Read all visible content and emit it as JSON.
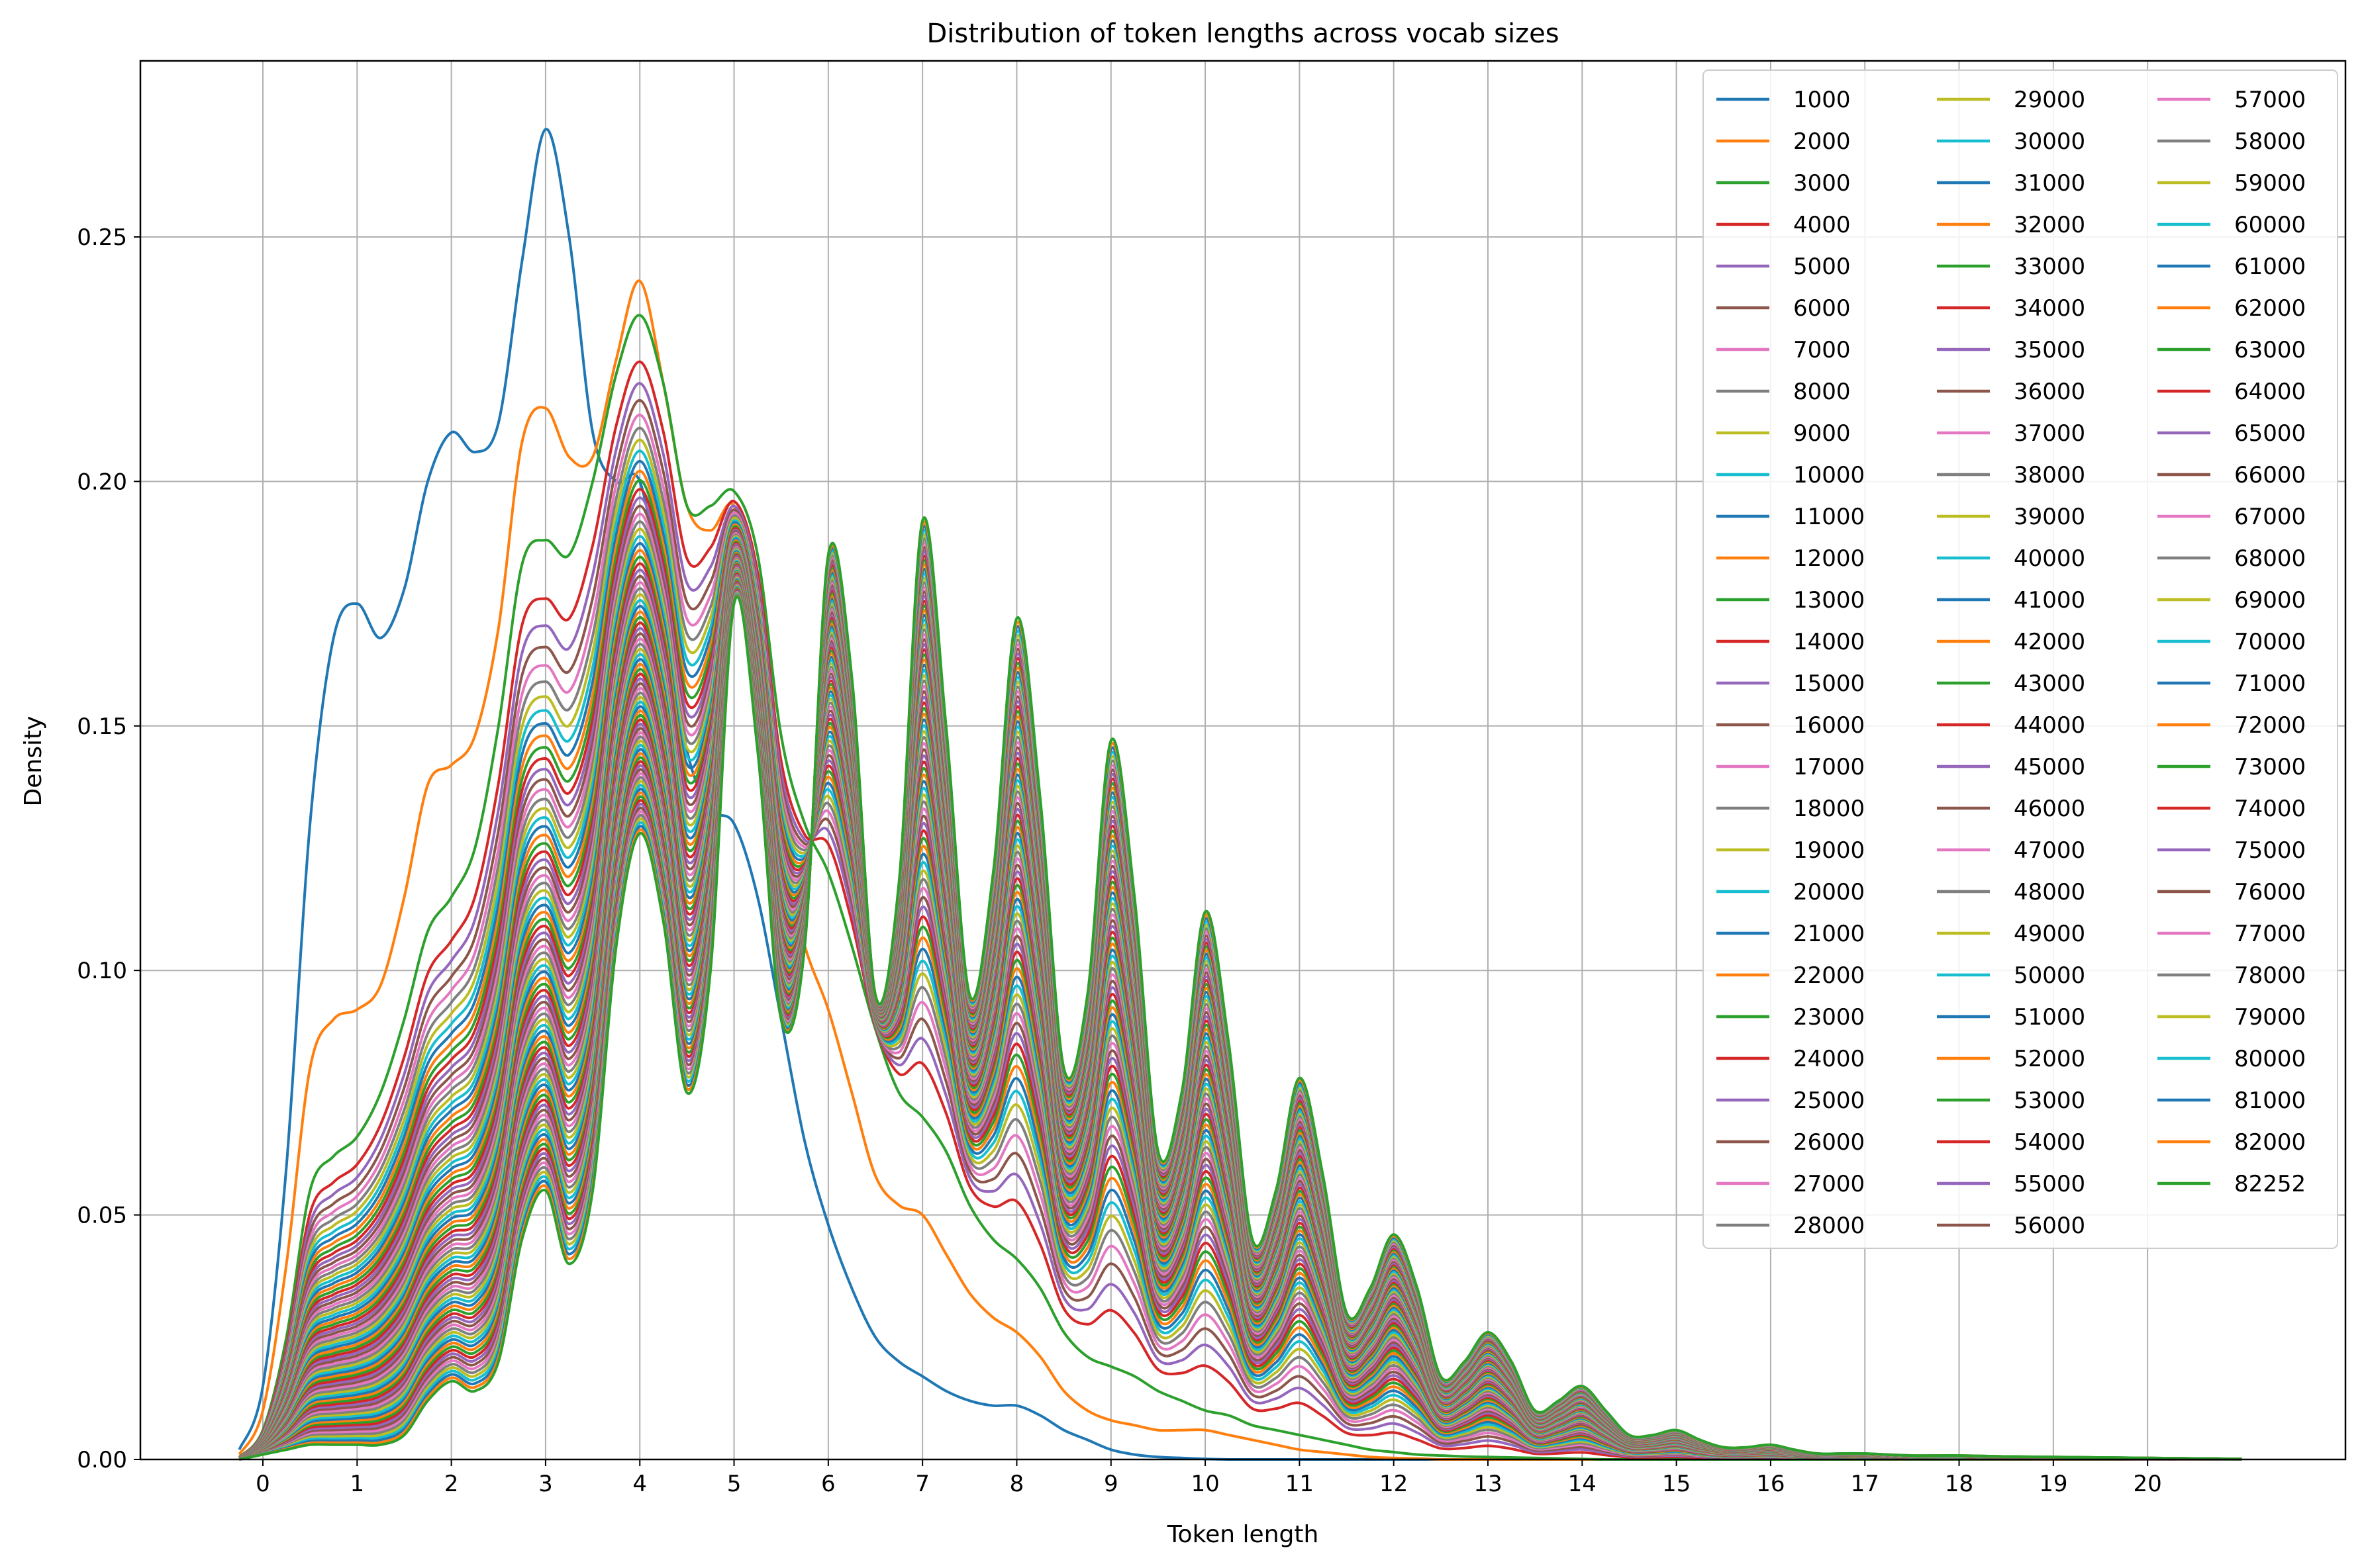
{
  "chart_data": {
    "type": "line",
    "title": "Distribution of token lengths across vocab sizes",
    "xlabel": "Token length",
    "ylabel": "Density",
    "xlim": [
      -1.3,
      22.1
    ],
    "ylim": [
      0,
      0.286
    ],
    "xticks": [
      0,
      1,
      2,
      3,
      4,
      5,
      6,
      7,
      8,
      9,
      10,
      11,
      12,
      13,
      14,
      15,
      16,
      17,
      18,
      19,
      20
    ],
    "yticks": [
      0.0,
      0.05,
      0.1,
      0.15,
      0.2,
      0.25
    ],
    "ytick_labels": [
      "0.00",
      "0.05",
      "0.10",
      "0.15",
      "0.20",
      "0.25"
    ],
    "grid": true,
    "legend_position": "top-right",
    "legend_columns": 3,
    "x": [
      -0.25,
      0,
      0.25,
      0.5,
      0.75,
      1,
      1.25,
      1.5,
      1.75,
      2,
      2.25,
      2.5,
      2.75,
      3,
      3.25,
      3.5,
      3.75,
      4,
      4.25,
      4.5,
      4.75,
      5,
      5.25,
      5.5,
      5.75,
      6,
      6.25,
      6.5,
      6.75,
      7,
      7.25,
      7.5,
      7.75,
      8,
      8.25,
      8.5,
      8.75,
      9,
      9.25,
      9.5,
      9.75,
      10,
      10.25,
      10.5,
      10.75,
      11,
      11.25,
      11.5,
      11.75,
      12,
      12.25,
      12.5,
      12.75,
      13,
      13.25,
      13.5,
      13.75,
      14,
      14.25,
      14.5,
      14.75,
      15,
      15.25,
      15.5,
      15.75,
      16,
      16.25,
      16.5,
      16.75,
      17,
      17.5,
      18,
      18.5,
      19,
      19.5,
      20,
      20.5,
      21
    ],
    "series": [
      {
        "name": "1000",
        "values": [
          0.002,
          0.015,
          0.06,
          0.13,
          0.168,
          0.175,
          0.168,
          0.178,
          0.2,
          0.21,
          0.206,
          0.212,
          0.245,
          0.272,
          0.25,
          0.21,
          0.2,
          0.2,
          0.175,
          0.145,
          0.133,
          0.13,
          0.115,
          0.09,
          0.065,
          0.048,
          0.035,
          0.025,
          0.02,
          0.017,
          0.014,
          0.012,
          0.011,
          0.011,
          0.009,
          0.006,
          0.004,
          0.002,
          0.001,
          0.0005,
          0.0003,
          0.0001,
          0,
          0,
          0,
          0,
          0,
          0,
          0,
          0,
          0,
          0,
          0,
          0,
          0,
          0,
          0,
          0,
          0,
          0,
          0,
          0,
          0,
          0,
          0,
          0,
          0,
          0,
          0,
          0,
          0,
          0,
          0,
          0,
          0,
          0,
          0,
          0
        ]
      },
      {
        "name": "2000",
        "values": [
          0.001,
          0.01,
          0.04,
          0.08,
          0.09,
          0.092,
          0.097,
          0.115,
          0.138,
          0.142,
          0.148,
          0.17,
          0.208,
          0.215,
          0.205,
          0.205,
          0.225,
          0.241,
          0.22,
          0.195,
          0.19,
          0.195,
          0.175,
          0.125,
          0.105,
          0.092,
          0.075,
          0.058,
          0.052,
          0.05,
          0.042,
          0.034,
          0.029,
          0.026,
          0.021,
          0.014,
          0.01,
          0.008,
          0.007,
          0.006,
          0.006,
          0.006,
          0.005,
          0.004,
          0.003,
          0.002,
          0.0015,
          0.001,
          0.0005,
          0.0003,
          0.0002,
          0,
          0,
          0,
          0,
          0,
          0,
          0,
          0,
          0,
          0,
          0,
          0,
          0,
          0,
          0,
          0,
          0,
          0,
          0,
          0,
          0,
          0,
          0,
          0,
          0,
          0,
          0
        ]
      }
    ],
    "envelope_series_names": [
      "3000",
      "4000",
      "5000",
      "6000",
      "7000",
      "8000",
      "9000",
      "10000",
      "11000",
      "12000",
      "13000",
      "14000",
      "15000",
      "16000",
      "17000",
      "18000",
      "19000",
      "20000",
      "21000",
      "22000",
      "23000",
      "24000",
      "25000",
      "26000",
      "27000",
      "28000",
      "29000",
      "30000",
      "31000",
      "32000",
      "33000",
      "34000",
      "35000",
      "36000",
      "37000",
      "38000",
      "39000",
      "40000",
      "41000",
      "42000",
      "43000",
      "44000",
      "45000",
      "46000",
      "47000",
      "48000",
      "49000",
      "50000",
      "51000",
      "52000",
      "53000",
      "54000",
      "55000",
      "56000",
      "57000",
      "58000",
      "59000",
      "60000",
      "61000",
      "62000",
      "63000",
      "64000",
      "65000",
      "66000",
      "67000",
      "68000",
      "69000",
      "70000",
      "71000",
      "72000",
      "73000",
      "74000",
      "75000",
      "76000",
      "77000",
      "78000",
      "79000",
      "80000",
      "81000",
      "82000",
      "82252"
    ],
    "envelope_first": {
      "name": "3000",
      "values": [
        0.0005,
        0.006,
        0.025,
        0.055,
        0.062,
        0.066,
        0.075,
        0.09,
        0.108,
        0.115,
        0.125,
        0.15,
        0.183,
        0.188,
        0.185,
        0.2,
        0.222,
        0.234,
        0.22,
        0.195,
        0.195,
        0.198,
        0.185,
        0.148,
        0.13,
        0.12,
        0.105,
        0.088,
        0.075,
        0.07,
        0.063,
        0.052,
        0.045,
        0.041,
        0.035,
        0.026,
        0.021,
        0.019,
        0.017,
        0.014,
        0.012,
        0.01,
        0.009,
        0.007,
        0.006,
        0.005,
        0.004,
        0.003,
        0.002,
        0.0015,
        0.001,
        0.0008,
        0.0006,
        0.0005,
        0.0004,
        0.0003,
        0.0002,
        0.0001,
        0,
        0,
        0,
        0,
        0,
        0,
        0,
        0,
        0,
        0,
        0,
        0,
        0,
        0,
        0,
        0,
        0,
        0,
        0,
        0
      ]
    },
    "envelope_last": {
      "name": "82252",
      "values": [
        0,
        0.001,
        0.002,
        0.003,
        0.003,
        0.003,
        0.003,
        0.005,
        0.012,
        0.016,
        0.014,
        0.02,
        0.045,
        0.055,
        0.04,
        0.055,
        0.105,
        0.128,
        0.11,
        0.075,
        0.1,
        0.175,
        0.145,
        0.09,
        0.105,
        0.185,
        0.16,
        0.095,
        0.118,
        0.192,
        0.15,
        0.095,
        0.12,
        0.172,
        0.135,
        0.08,
        0.095,
        0.147,
        0.115,
        0.063,
        0.075,
        0.112,
        0.085,
        0.045,
        0.055,
        0.078,
        0.058,
        0.03,
        0.035,
        0.046,
        0.035,
        0.017,
        0.02,
        0.026,
        0.02,
        0.01,
        0.012,
        0.015,
        0.01,
        0.005,
        0.005,
        0.006,
        0.004,
        0.0025,
        0.0025,
        0.003,
        0.002,
        0.0012,
        0.0012,
        0.0012,
        0.0008,
        0.0008,
        0.0006,
        0.0005,
        0.0004,
        0.0003,
        0.0002,
        0.0001
      ]
    },
    "legend_entries": [
      "1000",
      "2000",
      "3000",
      "4000",
      "5000",
      "6000",
      "7000",
      "8000",
      "9000",
      "10000",
      "11000",
      "12000",
      "13000",
      "14000",
      "15000",
      "16000",
      "17000",
      "18000",
      "19000",
      "20000",
      "21000",
      "22000",
      "23000",
      "24000",
      "25000",
      "26000",
      "27000",
      "28000",
      "29000",
      "30000",
      "31000",
      "32000",
      "33000",
      "34000",
      "35000",
      "36000",
      "37000",
      "38000",
      "39000",
      "40000",
      "41000",
      "42000",
      "43000",
      "44000",
      "45000",
      "46000",
      "47000",
      "48000",
      "49000",
      "50000",
      "51000",
      "52000",
      "53000",
      "54000",
      "55000",
      "56000",
      "57000",
      "58000",
      "59000",
      "60000",
      "61000",
      "62000",
      "63000",
      "64000",
      "65000",
      "66000",
      "67000",
      "68000",
      "69000",
      "70000",
      "71000",
      "72000",
      "73000",
      "74000",
      "75000",
      "76000",
      "77000",
      "78000",
      "79000",
      "80000",
      "81000",
      "82000",
      "82252"
    ],
    "palette": [
      "#1f77b4",
      "#ff7f0e",
      "#2ca02c",
      "#d62728",
      "#9467bd",
      "#8c564b",
      "#e377c2",
      "#7f7f7f",
      "#bcbd22",
      "#17becf"
    ]
  }
}
